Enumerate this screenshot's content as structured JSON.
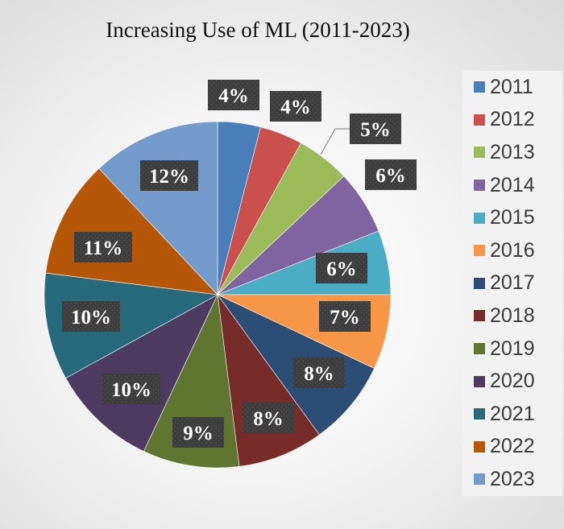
{
  "chart_data": {
    "type": "pie",
    "title": "Increasing Use of ML (2011-2023)",
    "categories": [
      "2011",
      "2012",
      "2013",
      "2014",
      "2015",
      "2016",
      "2017",
      "2018",
      "2019",
      "2020",
      "2021",
      "2022",
      "2023"
    ],
    "values": [
      4,
      4,
      5,
      6,
      6,
      7,
      8,
      8,
      9,
      10,
      10,
      11,
      12
    ],
    "data_labels": [
      "4%",
      "4%",
      "5%",
      "6%",
      "6%",
      "7%",
      "8%",
      "8%",
      "9%",
      "10%",
      "10%",
      "11%",
      "12%"
    ],
    "colors": [
      "#4a7ebb",
      "#c9504c",
      "#9bbb59",
      "#8064a2",
      "#4bacc6",
      "#f79646",
      "#2c4d75",
      "#772c2a",
      "#5f7530",
      "#4d3b62",
      "#276a7c",
      "#b65708",
      "#729aca"
    ],
    "legend_position": "right",
    "start_angle_deg": 0,
    "direction": "clockwise"
  }
}
